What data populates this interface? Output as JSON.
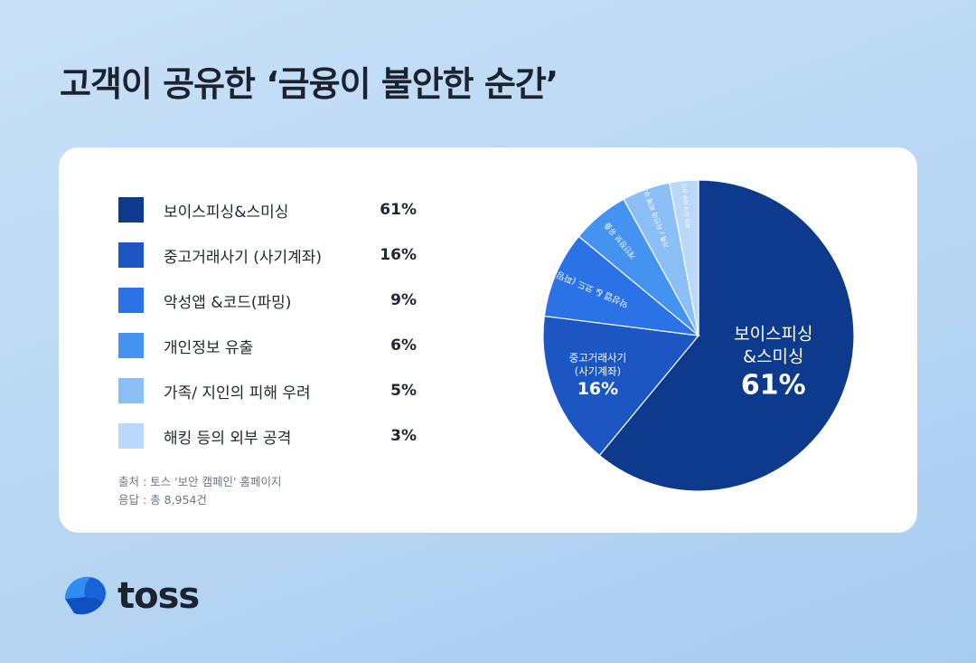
{
  "title": "고객이 공유한 ‘금융이 불안한 순간’",
  "chart_data": {
    "type": "pie",
    "categories": [
      "보이스피싱&스미싱",
      "중고거래사기 (사기계좌)",
      "악성앱 &코드(파밍)",
      "개인정보 유출",
      "가족/ 지인의 피해 우려",
      "해킹 등의 외부 공격"
    ],
    "values": [
      61,
      16,
      9,
      6,
      5,
      3
    ],
    "value_labels": [
      "61%",
      "16%",
      "9%",
      "6%",
      "5%",
      "3%"
    ],
    "colors": [
      "#0d3a8c",
      "#1b56c2",
      "#2a72e6",
      "#4493f0",
      "#8dbff7",
      "#b9d8fa"
    ],
    "slice_labels": [
      {
        "lines": [
          "보이스피싱",
          "&스미싱"
        ],
        "value": "61%"
      },
      {
        "lines": [
          "중고거래사기",
          "(사기계좌)"
        ],
        "value": "16%"
      },
      {
        "lines": [
          "악성앱 & 코드 (파밍)"
        ],
        "value": "9%"
      },
      {
        "lines": [
          "개인정보 유출"
        ],
        "value": ""
      },
      {
        "lines": [
          "가족 / 지인의 피해 우려"
        ],
        "value": ""
      },
      {
        "lines": [
          "해킹 등의 외부 공격"
        ],
        "value": ""
      }
    ],
    "legend_position": "left"
  },
  "source": {
    "line1": "출처 : 토스 '보안 캠페인' 홈페이지",
    "line2": "응답 : 총 8,954건"
  },
  "brand": {
    "name": "toss",
    "logo_icon": "toss-logo-icon"
  }
}
